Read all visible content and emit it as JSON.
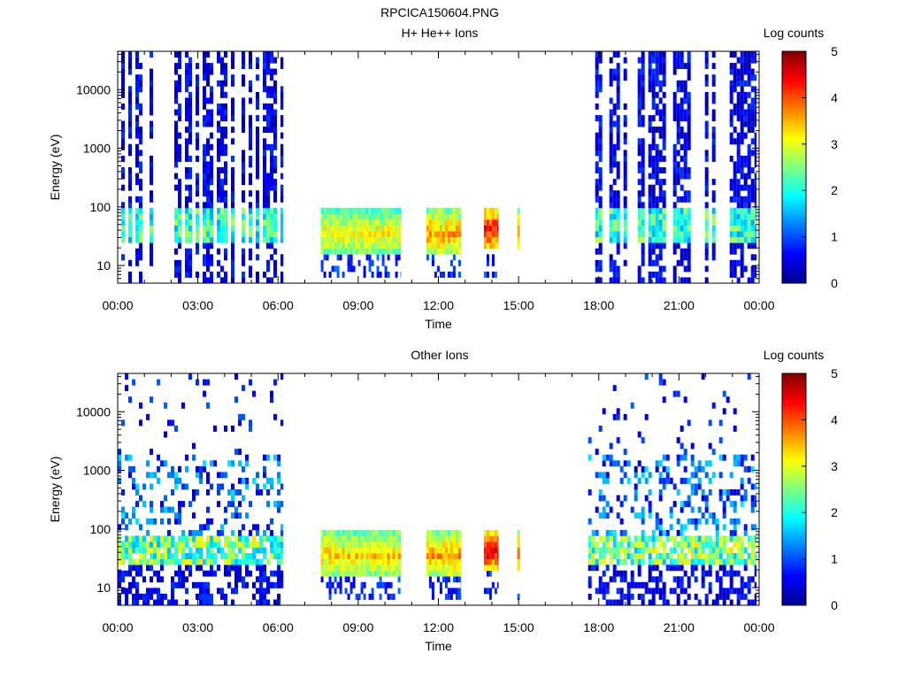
{
  "file_title": "RPCICA150604.PNG",
  "chart_data": [
    {
      "type": "heatmap",
      "title": "H+ He++ Ions",
      "xlabel": "Time",
      "ylabel": "Energy (eV)",
      "xlim_hours": [
        0,
        24
      ],
      "ylim_ev": [
        5,
        45000
      ],
      "y_scale": "log",
      "x_ticks": [
        {
          "hour": 0,
          "label": "00:00"
        },
        {
          "hour": 3,
          "label": "03:00"
        },
        {
          "hour": 6,
          "label": "06:00"
        },
        {
          "hour": 9,
          "label": "09:00"
        },
        {
          "hour": 12,
          "label": "12:00"
        },
        {
          "hour": 15,
          "label": "15:00"
        },
        {
          "hour": 18,
          "label": "18:00"
        },
        {
          "hour": 21,
          "label": "21:00"
        },
        {
          "hour": 24,
          "label": "00:00"
        }
      ],
      "y_ticks": [
        {
          "value": 10,
          "label": "10"
        },
        {
          "value": 100,
          "label": "100"
        },
        {
          "value": 1000,
          "label": "1000"
        },
        {
          "value": 10000,
          "label": "10000"
        }
      ],
      "colorbar": {
        "label": "Log counts",
        "min": 0,
        "max": 5,
        "ticks": [
          "0",
          "1",
          "2",
          "3",
          "4",
          "5"
        ]
      },
      "data_segments": [
        {
          "start_h": 0.0,
          "end_h": 6.2,
          "mode": "striped",
          "core_ev": [
            22,
            90
          ],
          "peak": 2.6
        },
        {
          "start_h": 7.6,
          "end_h": 10.6,
          "mode": "dense",
          "core_ev": [
            15,
            100
          ],
          "peak": 3.2
        },
        {
          "start_h": 11.55,
          "end_h": 12.85,
          "mode": "dense",
          "core_ev": [
            15,
            100
          ],
          "peak": 3.6
        },
        {
          "start_h": 13.7,
          "end_h": 14.25,
          "mode": "dense",
          "core_ev": [
            20,
            100
          ],
          "peak": 4.4
        },
        {
          "start_h": 14.95,
          "end_h": 15.05,
          "mode": "dense",
          "core_ev": [
            20,
            100
          ],
          "peak": 3.8
        },
        {
          "start_h": 17.6,
          "end_h": 23.9,
          "mode": "striped",
          "core_ev": [
            22,
            90
          ],
          "peak": 2.6
        }
      ]
    },
    {
      "type": "heatmap",
      "title": "Other Ions",
      "xlabel": "Time",
      "ylabel": "Energy (eV)",
      "xlim_hours": [
        0,
        24
      ],
      "ylim_ev": [
        5,
        45000
      ],
      "y_scale": "log",
      "x_ticks": [
        {
          "hour": 0,
          "label": "00:00"
        },
        {
          "hour": 3,
          "label": "03:00"
        },
        {
          "hour": 6,
          "label": "06:00"
        },
        {
          "hour": 9,
          "label": "09:00"
        },
        {
          "hour": 12,
          "label": "12:00"
        },
        {
          "hour": 15,
          "label": "15:00"
        },
        {
          "hour": 18,
          "label": "18:00"
        },
        {
          "hour": 21,
          "label": "21:00"
        },
        {
          "hour": 24,
          "label": "00:00"
        }
      ],
      "y_ticks": [
        {
          "value": 10,
          "label": "10"
        },
        {
          "value": 100,
          "label": "100"
        },
        {
          "value": 1000,
          "label": "1000"
        },
        {
          "value": 10000,
          "label": "10000"
        }
      ],
      "colorbar": {
        "label": "Log counts",
        "min": 0,
        "max": 5,
        "ticks": [
          "0",
          "1",
          "2",
          "3",
          "4",
          "5"
        ]
      },
      "data_segments": [
        {
          "start_h": 0.0,
          "end_h": 6.2,
          "mode": "sparse",
          "core_ev": [
            22,
            80
          ],
          "peak": 3.1
        },
        {
          "start_h": 7.6,
          "end_h": 10.6,
          "mode": "dense",
          "core_ev": [
            15,
            100
          ],
          "peak": 3.4
        },
        {
          "start_h": 11.55,
          "end_h": 12.85,
          "mode": "dense",
          "core_ev": [
            15,
            100
          ],
          "peak": 3.6
        },
        {
          "start_h": 13.7,
          "end_h": 14.25,
          "mode": "dense",
          "core_ev": [
            20,
            100
          ],
          "peak": 4.5
        },
        {
          "start_h": 14.95,
          "end_h": 15.05,
          "mode": "dense",
          "core_ev": [
            20,
            100
          ],
          "peak": 4.0
        },
        {
          "start_h": 17.6,
          "end_h": 23.9,
          "mode": "sparse",
          "core_ev": [
            22,
            80
          ],
          "peak": 3.1
        }
      ]
    }
  ]
}
